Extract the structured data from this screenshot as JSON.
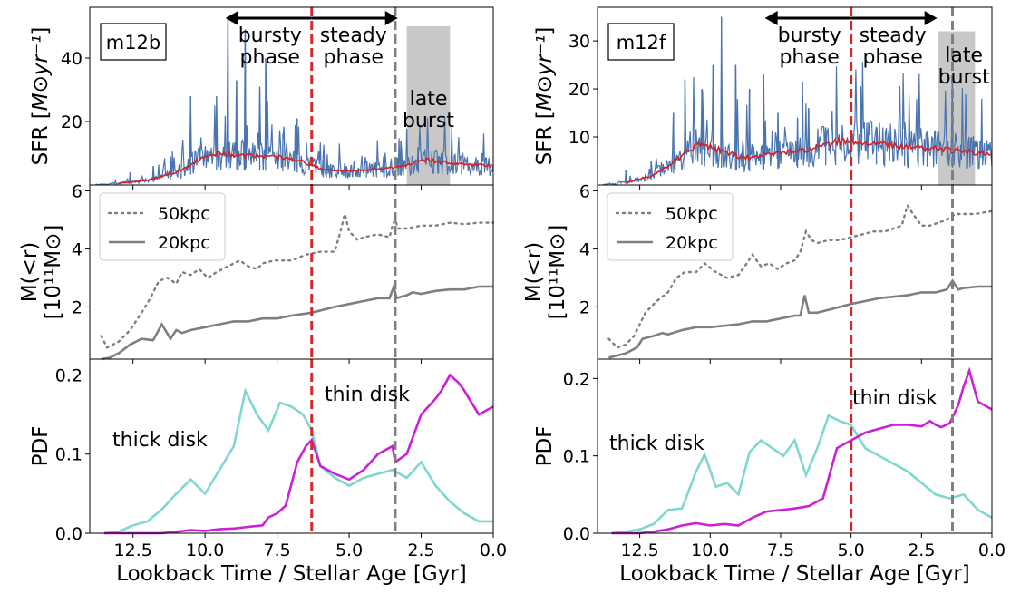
{
  "chart_data": [
    {
      "type": "line",
      "title": "",
      "galaxy_label": "m12b",
      "xlabel": "Lookback Time / Stellar Age [Gyr]",
      "xlim": [
        14,
        0
      ],
      "xticks": [
        "12.5",
        "10.0",
        "7.5",
        "5.0",
        "2.5",
        "0.0"
      ],
      "xtick_values": [
        12.5,
        10.0,
        7.5,
        5.0,
        2.5,
        0.0
      ],
      "red_line_x": 6.3,
      "gray_line_x": 3.4,
      "late_burst_range": [
        3.0,
        1.5
      ],
      "late_burst_top": 50,
      "annotations": {
        "bursty_line1": "bursty",
        "bursty_line2": "phase",
        "steady_line1": "steady",
        "steady_line2": "phase",
        "late_line1": "late",
        "late_line2": "burst"
      },
      "sfr": {
        "ylabel_prefix": "SFR [",
        "ylabel_unit": "M⊙yr⁻¹",
        "ylabel_suffix": "]",
        "ylim": [
          0,
          56
        ],
        "yticks": [
          "20",
          "40"
        ],
        "ytick_values": [
          20,
          40
        ],
        "peaks": [
          [
            12.6,
            4
          ],
          [
            11.8,
            6
          ],
          [
            11.2,
            9
          ],
          [
            10.5,
            28
          ],
          [
            9.6,
            28
          ],
          [
            9.2,
            53
          ],
          [
            8.9,
            33
          ],
          [
            8.6,
            49
          ],
          [
            8.1,
            31
          ],
          [
            7.9,
            40
          ],
          [
            7.3,
            16
          ],
          [
            6.8,
            21
          ],
          [
            5.9,
            8
          ],
          [
            5.1,
            6
          ],
          [
            4.4,
            7
          ],
          [
            3.8,
            9
          ],
          [
            3.2,
            14
          ],
          [
            2.6,
            12
          ],
          [
            1.9,
            9
          ],
          [
            1.1,
            9
          ],
          [
            0.4,
            10
          ]
        ],
        "smooth": {
          "x": [
            13.0,
            12.0,
            11.0,
            10.2,
            9.5,
            9.0,
            8.0,
            7.0,
            6.5,
            6.0,
            5.0,
            4.0,
            3.0,
            2.5,
            2.0,
            1.0,
            0.0
          ],
          "y": [
            0.5,
            1.5,
            4.0,
            8.0,
            10.0,
            9.5,
            9.0,
            8.5,
            7.0,
            5.0,
            4.5,
            5.0,
            6.0,
            8.0,
            7.5,
            6.5,
            6.0
          ]
        }
      },
      "mass": {
        "ylabel_line1": "M(<r)",
        "ylabel_line2": "[10¹¹M⊙]",
        "ylim": [
          0.2,
          6.2
        ],
        "yticks": [
          "2",
          "4",
          "6"
        ],
        "ytick_values": [
          2,
          4,
          6
        ],
        "legend": [
          "50kpc",
          "20kpc"
        ],
        "series": [
          {
            "name": "50kpc",
            "x": [
              13.6,
              13.4,
              13.0,
              12.6,
              12.2,
              11.9,
              11.6,
              11.3,
              11.0,
              10.8,
              10.5,
              10.2,
              9.9,
              9.6,
              9.0,
              8.8,
              8.5,
              8.2,
              8.0,
              7.6,
              7.0,
              6.5,
              6.0,
              5.5,
              5.3,
              5.15,
              5.0,
              4.7,
              4.5,
              4.0,
              3.6,
              3.5,
              3.4,
              3.3,
              3.0,
              2.5,
              2.0,
              1.5,
              1.0,
              0.5,
              0.0
            ],
            "y": [
              1.0,
              0.6,
              0.8,
              1.2,
              1.8,
              2.3,
              2.9,
              3.0,
              2.8,
              3.2,
              3.1,
              3.3,
              3.0,
              3.2,
              3.5,
              3.6,
              3.4,
              3.3,
              3.5,
              3.6,
              3.6,
              3.8,
              3.9,
              3.9,
              4.6,
              5.2,
              4.6,
              4.3,
              4.4,
              4.5,
              4.4,
              4.8,
              5.0,
              4.7,
              4.7,
              4.8,
              4.8,
              4.9,
              4.85,
              4.9,
              4.9
            ]
          },
          {
            "name": "20kpc",
            "x": [
              13.6,
              13.3,
              13.0,
              12.6,
              12.2,
              11.8,
              11.5,
              11.2,
              11.0,
              10.8,
              10.5,
              10.0,
              9.5,
              9.0,
              8.5,
              8.0,
              7.5,
              7.0,
              6.3,
              5.5,
              5.0,
              4.5,
              4.0,
              3.6,
              3.45,
              3.35,
              3.2,
              3.0,
              2.8,
              2.5,
              2.0,
              1.5,
              1.0,
              0.5,
              0.0
            ],
            "y": [
              0.2,
              0.25,
              0.4,
              0.7,
              0.9,
              0.85,
              1.4,
              0.9,
              1.2,
              1.1,
              1.2,
              1.3,
              1.4,
              1.5,
              1.5,
              1.6,
              1.6,
              1.7,
              1.8,
              2.0,
              2.1,
              2.2,
              2.3,
              2.3,
              2.7,
              2.3,
              2.35,
              2.4,
              2.5,
              2.45,
              2.55,
              2.6,
              2.6,
              2.7,
              2.7
            ]
          }
        ]
      },
      "pdf": {
        "ylabel": "PDF",
        "ylim": [
          0,
          0.22
        ],
        "yticks": [
          "0.0",
          "0.1",
          "0.2"
        ],
        "ytick_values": [
          0.0,
          0.1,
          0.2
        ],
        "thick_label": "thick disk",
        "thin_label": "thin disk",
        "series": [
          {
            "name": "thick disk",
            "x": [
              13.5,
              13.0,
              12.5,
              12.0,
              11.5,
              11.0,
              10.5,
              10.0,
              9.5,
              9.0,
              8.6,
              8.2,
              7.8,
              7.4,
              7.0,
              6.6,
              6.3,
              6.0,
              5.5,
              5.0,
              4.5,
              4.0,
              3.5,
              3.0,
              2.5,
              2.0,
              1.5,
              1.0,
              0.5,
              0.0
            ],
            "y": [
              0.0,
              0.002,
              0.01,
              0.015,
              0.03,
              0.05,
              0.068,
              0.05,
              0.08,
              0.11,
              0.18,
              0.15,
              0.13,
              0.165,
              0.16,
              0.15,
              0.13,
              0.085,
              0.07,
              0.06,
              0.07,
              0.075,
              0.08,
              0.07,
              0.09,
              0.06,
              0.04,
              0.025,
              0.015,
              0.015
            ]
          },
          {
            "name": "thin disk",
            "x": [
              13.5,
              12.5,
              11.5,
              11.0,
              10.5,
              10.0,
              9.5,
              9.0,
              8.5,
              8.0,
              7.8,
              7.5,
              7.2,
              6.8,
              6.5,
              6.3,
              6.0,
              5.5,
              5.0,
              4.5,
              4.0,
              3.5,
              3.4,
              3.0,
              2.5,
              2.0,
              1.8,
              1.5,
              1.2,
              1.0,
              0.5,
              0.0
            ],
            "y": [
              0.0,
              0.0,
              0.0,
              0.002,
              0.004,
              0.003,
              0.005,
              0.006,
              0.008,
              0.01,
              0.02,
              0.025,
              0.035,
              0.09,
              0.11,
              0.118,
              0.085,
              0.075,
              0.068,
              0.08,
              0.1,
              0.11,
              0.09,
              0.1,
              0.15,
              0.17,
              0.18,
              0.2,
              0.19,
              0.18,
              0.15,
              0.16
            ]
          }
        ]
      }
    },
    {
      "type": "line",
      "title": "",
      "galaxy_label": "m12f",
      "xlabel": "Lookback Time / Stellar Age [Gyr]",
      "xlim": [
        14,
        0
      ],
      "xticks": [
        "12.5",
        "10.0",
        "7.5",
        "5.0",
        "2.5",
        "0.0"
      ],
      "xtick_values": [
        12.5,
        10.0,
        7.5,
        5.0,
        2.5,
        0.0
      ],
      "red_line_x": 5.0,
      "gray_line_x": 1.4,
      "late_burst_range": [
        1.9,
        0.6
      ],
      "late_burst_top": 32,
      "annotations": {
        "bursty_line1": "bursty",
        "bursty_line2": "phase",
        "steady_line1": "steady",
        "steady_line2": "phase",
        "late_line1": "late",
        "late_line2": "burst"
      },
      "sfr": {
        "ylabel_prefix": "SFR [",
        "ylabel_unit": "M⊙yr⁻¹",
        "ylabel_suffix": "]",
        "ylim": [
          0,
          37
        ],
        "yticks": [
          "10",
          "20",
          "30"
        ],
        "ytick_values": [
          10,
          20,
          30
        ],
        "peaks": [
          [
            13.0,
            3
          ],
          [
            12.1,
            5
          ],
          [
            11.3,
            15
          ],
          [
            10.9,
            22
          ],
          [
            10.3,
            20
          ],
          [
            9.9,
            25
          ],
          [
            9.6,
            35
          ],
          [
            9.1,
            25
          ],
          [
            8.6,
            20
          ],
          [
            8.1,
            23
          ],
          [
            7.6,
            15
          ],
          [
            6.9,
            14
          ],
          [
            6.5,
            16
          ],
          [
            5.9,
            12
          ],
          [
            5.0,
            11
          ],
          [
            4.1,
            12
          ],
          [
            3.1,
            13
          ],
          [
            2.3,
            11
          ],
          [
            1.4,
            21
          ],
          [
            0.9,
            9
          ]
        ],
        "smooth": {
          "x": [
            13.0,
            12.0,
            11.0,
            10.5,
            10.0,
            9.5,
            9.0,
            8.5,
            8.0,
            7.0,
            6.5,
            6.0,
            5.5,
            5.0,
            4.0,
            3.0,
            2.0,
            1.0,
            0.0
          ],
          "y": [
            0.5,
            2.0,
            6.0,
            8.5,
            8.0,
            7.0,
            6.0,
            5.5,
            6.5,
            7.0,
            7.5,
            8.0,
            9.0,
            9.0,
            8.5,
            8.0,
            7.5,
            7.0,
            6.5
          ]
        }
      },
      "mass": {
        "ylabel_line1": "M(<r)",
        "ylabel_line2": "[10¹¹M⊙]",
        "ylim": [
          0.2,
          6.2
        ],
        "yticks": [
          "2",
          "4",
          "6"
        ],
        "ytick_values": [
          2,
          4,
          6
        ],
        "legend": [
          "50kpc",
          "20kpc"
        ],
        "series": [
          {
            "name": "50kpc",
            "x": [
              13.6,
              13.3,
              13.0,
              12.7,
              12.3,
              11.9,
              11.5,
              11.2,
              10.9,
              10.5,
              10.2,
              9.8,
              9.4,
              9.0,
              8.7,
              8.5,
              8.2,
              7.9,
              7.6,
              7.3,
              7.0,
              6.8,
              6.6,
              6.4,
              6.2,
              5.8,
              5.4,
              5.0,
              4.6,
              4.2,
              3.8,
              3.5,
              3.2,
              3.0,
              2.8,
              2.5,
              2.2,
              1.9,
              1.6,
              1.3,
              1.0,
              0.6,
              0.0
            ],
            "y": [
              0.9,
              0.6,
              0.7,
              1.0,
              1.8,
              2.2,
              2.5,
              3.0,
              3.2,
              3.2,
              3.5,
              3.2,
              3.0,
              3.1,
              3.5,
              3.8,
              3.4,
              3.5,
              3.3,
              3.5,
              3.6,
              3.9,
              4.6,
              4.3,
              4.2,
              4.3,
              4.3,
              4.4,
              4.5,
              4.6,
              4.6,
              4.7,
              4.8,
              5.5,
              5.2,
              4.8,
              4.8,
              4.9,
              5.0,
              5.2,
              5.2,
              5.2,
              5.3
            ]
          },
          {
            "name": "20kpc",
            "x": [
              13.6,
              13.0,
              12.6,
              12.4,
              12.0,
              11.7,
              11.5,
              11.0,
              10.5,
              10.0,
              9.5,
              9.0,
              8.5,
              8.0,
              7.5,
              7.0,
              6.8,
              6.65,
              6.5,
              6.2,
              5.8,
              5.0,
              4.5,
              4.0,
              3.5,
              3.0,
              2.5,
              2.0,
              1.6,
              1.4,
              1.2,
              1.0,
              0.5,
              0.0
            ],
            "y": [
              0.25,
              0.4,
              0.6,
              0.9,
              1.0,
              1.1,
              1.05,
              1.2,
              1.3,
              1.3,
              1.35,
              1.4,
              1.5,
              1.5,
              1.6,
              1.7,
              1.7,
              2.4,
              1.8,
              1.8,
              1.9,
              2.1,
              2.2,
              2.3,
              2.35,
              2.4,
              2.5,
              2.5,
              2.6,
              2.9,
              2.6,
              2.65,
              2.7,
              2.7
            ]
          }
        ]
      },
      "pdf": {
        "ylabel": "PDF",
        "ylim": [
          0,
          0.225
        ],
        "yticks": [
          "0.0",
          "0.1",
          "0.2"
        ],
        "ytick_values": [
          0.0,
          0.1,
          0.2
        ],
        "thick_label": "thick disk",
        "thin_label": "thin disk",
        "series": [
          {
            "name": "thick disk",
            "x": [
              13.5,
              13.0,
              12.5,
              12.0,
              11.5,
              11.0,
              10.5,
              10.2,
              9.8,
              9.4,
              9.0,
              8.6,
              8.2,
              7.8,
              7.4,
              7.0,
              6.6,
              6.2,
              5.8,
              5.4,
              5.0,
              4.5,
              4.0,
              3.5,
              3.0,
              2.5,
              2.0,
              1.5,
              1.0,
              0.5,
              0.0
            ],
            "y": [
              0.0,
              0.002,
              0.005,
              0.012,
              0.03,
              0.032,
              0.08,
              0.102,
              0.06,
              0.065,
              0.05,
              0.105,
              0.12,
              0.11,
              0.1,
              0.12,
              0.075,
              0.11,
              0.152,
              0.145,
              0.14,
              0.11,
              0.1,
              0.09,
              0.08,
              0.065,
              0.05,
              0.045,
              0.05,
              0.03,
              0.02
            ]
          },
          {
            "name": "thin disk",
            "x": [
              13.5,
              12.5,
              12.0,
              11.5,
              11.0,
              10.5,
              10.0,
              9.5,
              9.0,
              8.5,
              8.0,
              7.5,
              7.0,
              6.5,
              6.0,
              5.5,
              5.0,
              4.5,
              4.0,
              3.5,
              3.0,
              2.5,
              2.2,
              2.0,
              1.8,
              1.5,
              1.2,
              1.0,
              0.8,
              0.5,
              0.0
            ],
            "y": [
              0.0,
              0.0,
              0.002,
              0.005,
              0.01,
              0.013,
              0.01,
              0.012,
              0.01,
              0.02,
              0.028,
              0.03,
              0.032,
              0.035,
              0.045,
              0.11,
              0.12,
              0.13,
              0.135,
              0.14,
              0.14,
              0.138,
              0.145,
              0.14,
              0.137,
              0.142,
              0.165,
              0.19,
              0.21,
              0.17,
              0.16
            ]
          }
        ]
      }
    }
  ],
  "colors": {
    "sfr_raw": "#4a74b0",
    "sfr_smooth": "#d42020",
    "red_vline": "#d62728",
    "gray_vline": "#7f7f7f",
    "mass_line": "#7f7f7f",
    "thick_disk": "#7fd8d0",
    "thin_disk": "#cc20d6",
    "late_burst_fill": "#c8c8c8"
  }
}
